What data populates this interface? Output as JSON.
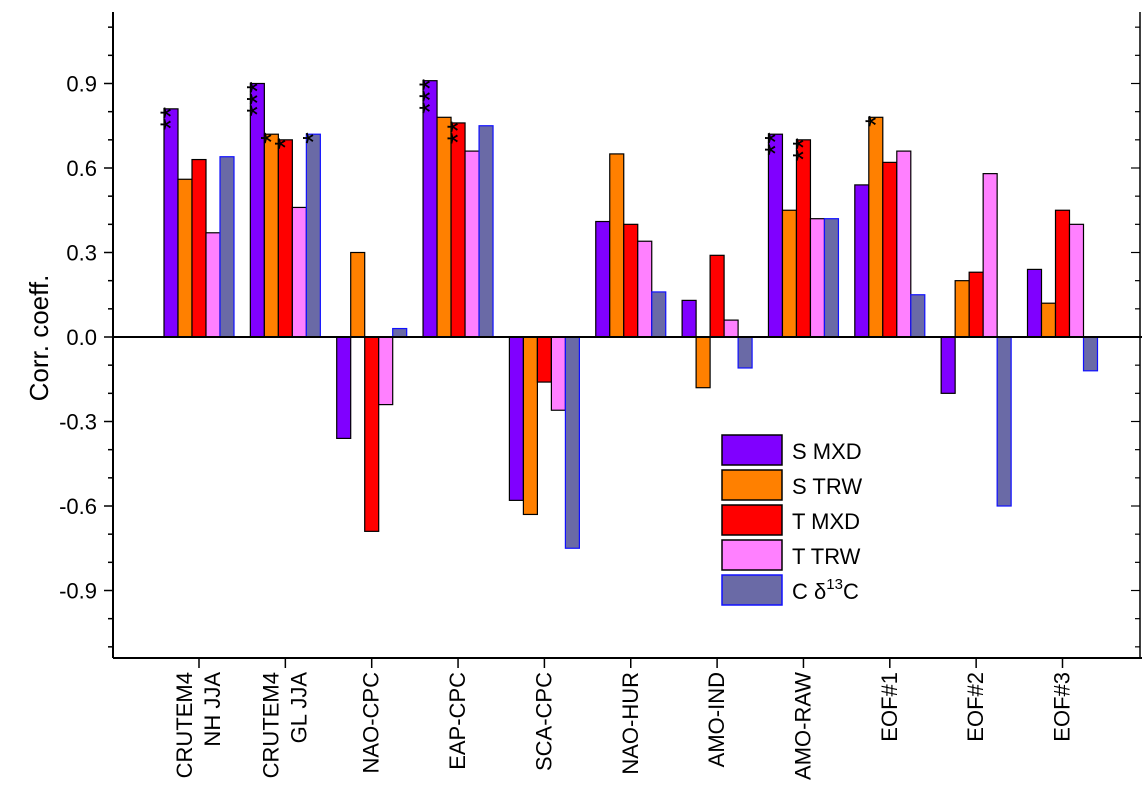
{
  "chart_data": {
    "type": "bar",
    "ylabel": "Corr. coeff.",
    "xlabel": "",
    "ylim": [
      -1.15,
      1.15
    ],
    "yticks": [
      "-0.9",
      "-0.6",
      "-0.3",
      "0.0",
      "0.3",
      "0.6",
      "0.9"
    ],
    "ytick_values": [
      -0.9,
      -0.6,
      -0.3,
      0.0,
      0.3,
      0.6,
      0.9
    ],
    "categories": [
      [
        "CRUTEM4",
        "NH JJA"
      ],
      [
        "CRUTEM4",
        "GL JJA"
      ],
      [
        "NAO-CPC"
      ],
      [
        "EAP-CPC"
      ],
      [
        "SCA-CPC"
      ],
      [
        "NAO-HUR"
      ],
      [
        "AMO-IND"
      ],
      [
        "AMO-RAW"
      ],
      [
        "EOF#1"
      ],
      [
        "EOF#2"
      ],
      [
        "EOF#3"
      ]
    ],
    "series": [
      {
        "name": "S MXD",
        "color": "#8000ff",
        "values": [
          0.81,
          0.9,
          -0.36,
          0.91,
          -0.58,
          0.41,
          0.13,
          0.72,
          0.54,
          -0.2,
          0.24
        ]
      },
      {
        "name": "S TRW",
        "color": "#ff8000",
        "values": [
          0.56,
          0.72,
          0.3,
          0.78,
          -0.63,
          0.65,
          -0.18,
          0.45,
          0.78,
          0.2,
          0.12
        ]
      },
      {
        "name": "T MXD",
        "color": "#ff0000",
        "values": [
          0.63,
          0.7,
          -0.69,
          0.76,
          -0.16,
          0.4,
          0.29,
          0.7,
          0.62,
          0.23,
          0.45
        ]
      },
      {
        "name": "T TRW",
        "color": "#ff80ff",
        "values": [
          0.37,
          0.46,
          -0.24,
          0.66,
          -0.26,
          0.34,
          0.06,
          0.42,
          0.66,
          0.58,
          0.4
        ]
      },
      {
        "name": "C δ13C",
        "name_base": "C δ",
        "name_sup": "13",
        "name_tail": "C",
        "color": "#6a6aa6",
        "edge": "#1010ff",
        "values": [
          0.64,
          0.72,
          0.03,
          0.75,
          -0.75,
          0.16,
          -0.11,
          0.42,
          0.15,
          -0.6,
          -0.12
        ]
      }
    ],
    "annotations": [
      {
        "category": 0,
        "series": 0,
        "text": "**"
      },
      {
        "category": 1,
        "series": 0,
        "text": "***"
      },
      {
        "category": 1,
        "series": 1,
        "text": "*"
      },
      {
        "category": 1,
        "series": 2,
        "text": "*"
      },
      {
        "category": 1,
        "series": 4,
        "text": "*"
      },
      {
        "category": 3,
        "series": 0,
        "text": "***"
      },
      {
        "category": 3,
        "series": 2,
        "text": "**"
      },
      {
        "category": 7,
        "series": 0,
        "text": "**"
      },
      {
        "category": 7,
        "series": 2,
        "text": "**"
      },
      {
        "category": 8,
        "series": 1,
        "text": "*"
      }
    ],
    "legend_position": "lower-right",
    "grid": false
  }
}
